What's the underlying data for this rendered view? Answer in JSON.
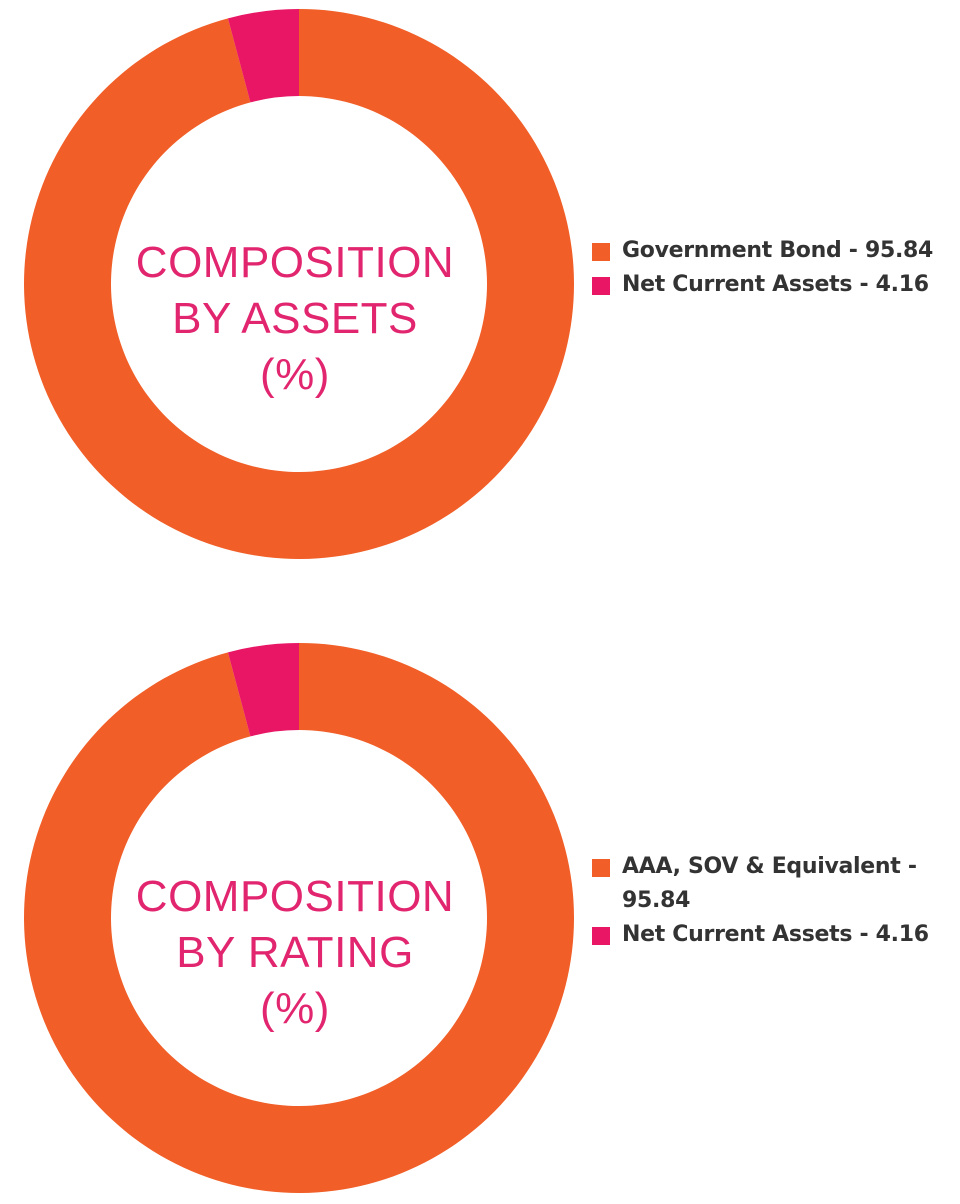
{
  "colors": {
    "orange": "#f15e27",
    "pink": "#e91565",
    "title": "#e2256f",
    "legend_text": "#333333"
  },
  "chart_data": [
    {
      "type": "pie",
      "title_lines": [
        "COMPOSITION",
        "BY ASSETS",
        "(%)"
      ],
      "slices": [
        {
          "label": "Government Bond - 95.84",
          "value": 95.84,
          "color": "#f15e27"
        },
        {
          "label": "Net Current Assets - 4.16",
          "value": 4.16,
          "color": "#e91565"
        }
      ],
      "legend_position": "right"
    },
    {
      "type": "pie",
      "title_lines": [
        "COMPOSITION",
        "BY RATING",
        "(%)"
      ],
      "slices": [
        {
          "label": "AAA, SOV & Equivalent - 95.84",
          "value": 95.84,
          "color": "#f15e27"
        },
        {
          "label": "Net Current Assets - 4.16",
          "value": 4.16,
          "color": "#e91565"
        }
      ],
      "legend_position": "right"
    }
  ]
}
